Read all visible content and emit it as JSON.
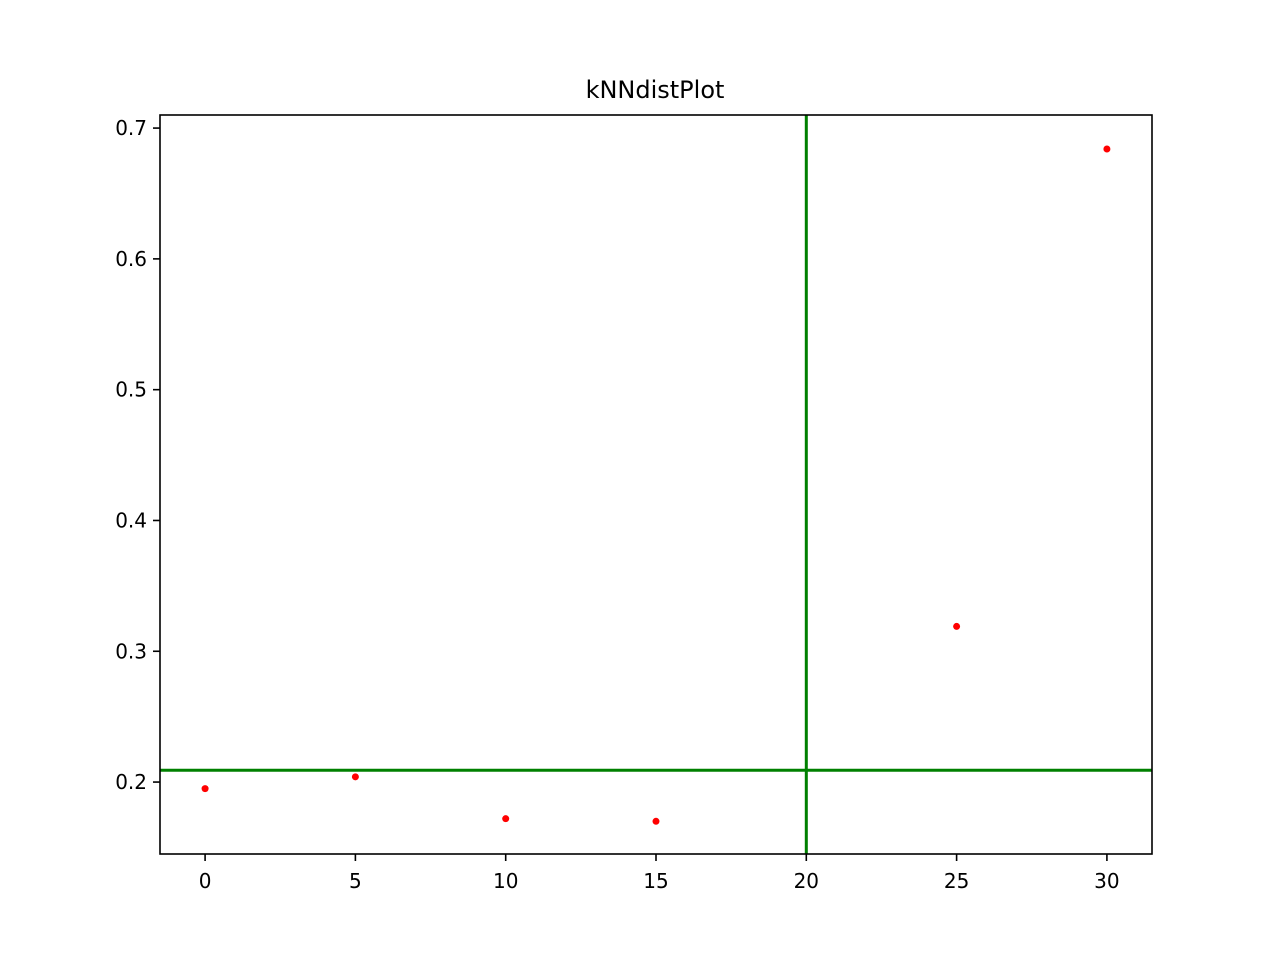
{
  "chart_data": {
    "type": "scatter",
    "title": "kNNdistPlot",
    "xlabel": "",
    "ylabel": "",
    "xlim": [
      -1.5,
      31.5
    ],
    "ylim": [
      0.145,
      0.71
    ],
    "x_ticks": [
      0,
      5,
      10,
      15,
      20,
      25,
      30
    ],
    "x_tick_labels": [
      "0",
      "5",
      "10",
      "15",
      "20",
      "25",
      "30"
    ],
    "y_ticks": [
      0.2,
      0.3,
      0.4,
      0.5,
      0.6,
      0.7
    ],
    "y_tick_labels": [
      "0.2",
      "0.3",
      "0.4",
      "0.5",
      "0.6",
      "0.7"
    ],
    "grid": false,
    "legend": "none",
    "series": [
      {
        "color": "#ff0000",
        "points": [
          {
            "x": 0,
            "y": 0.195
          },
          {
            "x": 5,
            "y": 0.204
          },
          {
            "x": 10,
            "y": 0.172
          },
          {
            "x": 15,
            "y": 0.17
          },
          {
            "x": 25,
            "y": 0.319
          },
          {
            "x": 30,
            "y": 0.684
          }
        ]
      }
    ],
    "reference_lines": [
      {
        "orientation": "vertical",
        "x": 20,
        "color": "#008000"
      },
      {
        "orientation": "horizontal",
        "y": 0.209,
        "color": "#008000"
      }
    ]
  }
}
